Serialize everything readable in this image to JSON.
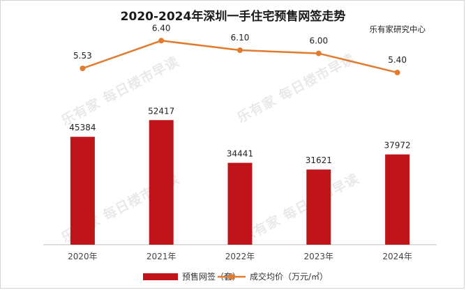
{
  "chart_data": {
    "type": "bar",
    "title": "2020-2024年深圳一手住宅预售网签走势",
    "source": "乐有家研究中心",
    "categories": [
      "2020年",
      "2021年",
      "2022年",
      "2023年",
      "2024年"
    ],
    "series": [
      {
        "name": "预售网签（套）",
        "type": "bar",
        "axis": "left",
        "values": [
          45384,
          52417,
          34441,
          31621,
          37972
        ]
      },
      {
        "name": "成交均价（万元/㎡）",
        "type": "line",
        "axis": "right",
        "values": [
          5.53,
          6.4,
          6.1,
          6.0,
          5.4
        ]
      }
    ],
    "bar_ylim": [
      0,
      100000
    ],
    "line_ylim": [
      0,
      6.8
    ],
    "grid": false,
    "legend_position": "bottom",
    "colors": {
      "bar": "#c0141b",
      "line": "#e07b30"
    },
    "watermark": "每日楼市早读",
    "watermark_logo": "乐有家"
  }
}
